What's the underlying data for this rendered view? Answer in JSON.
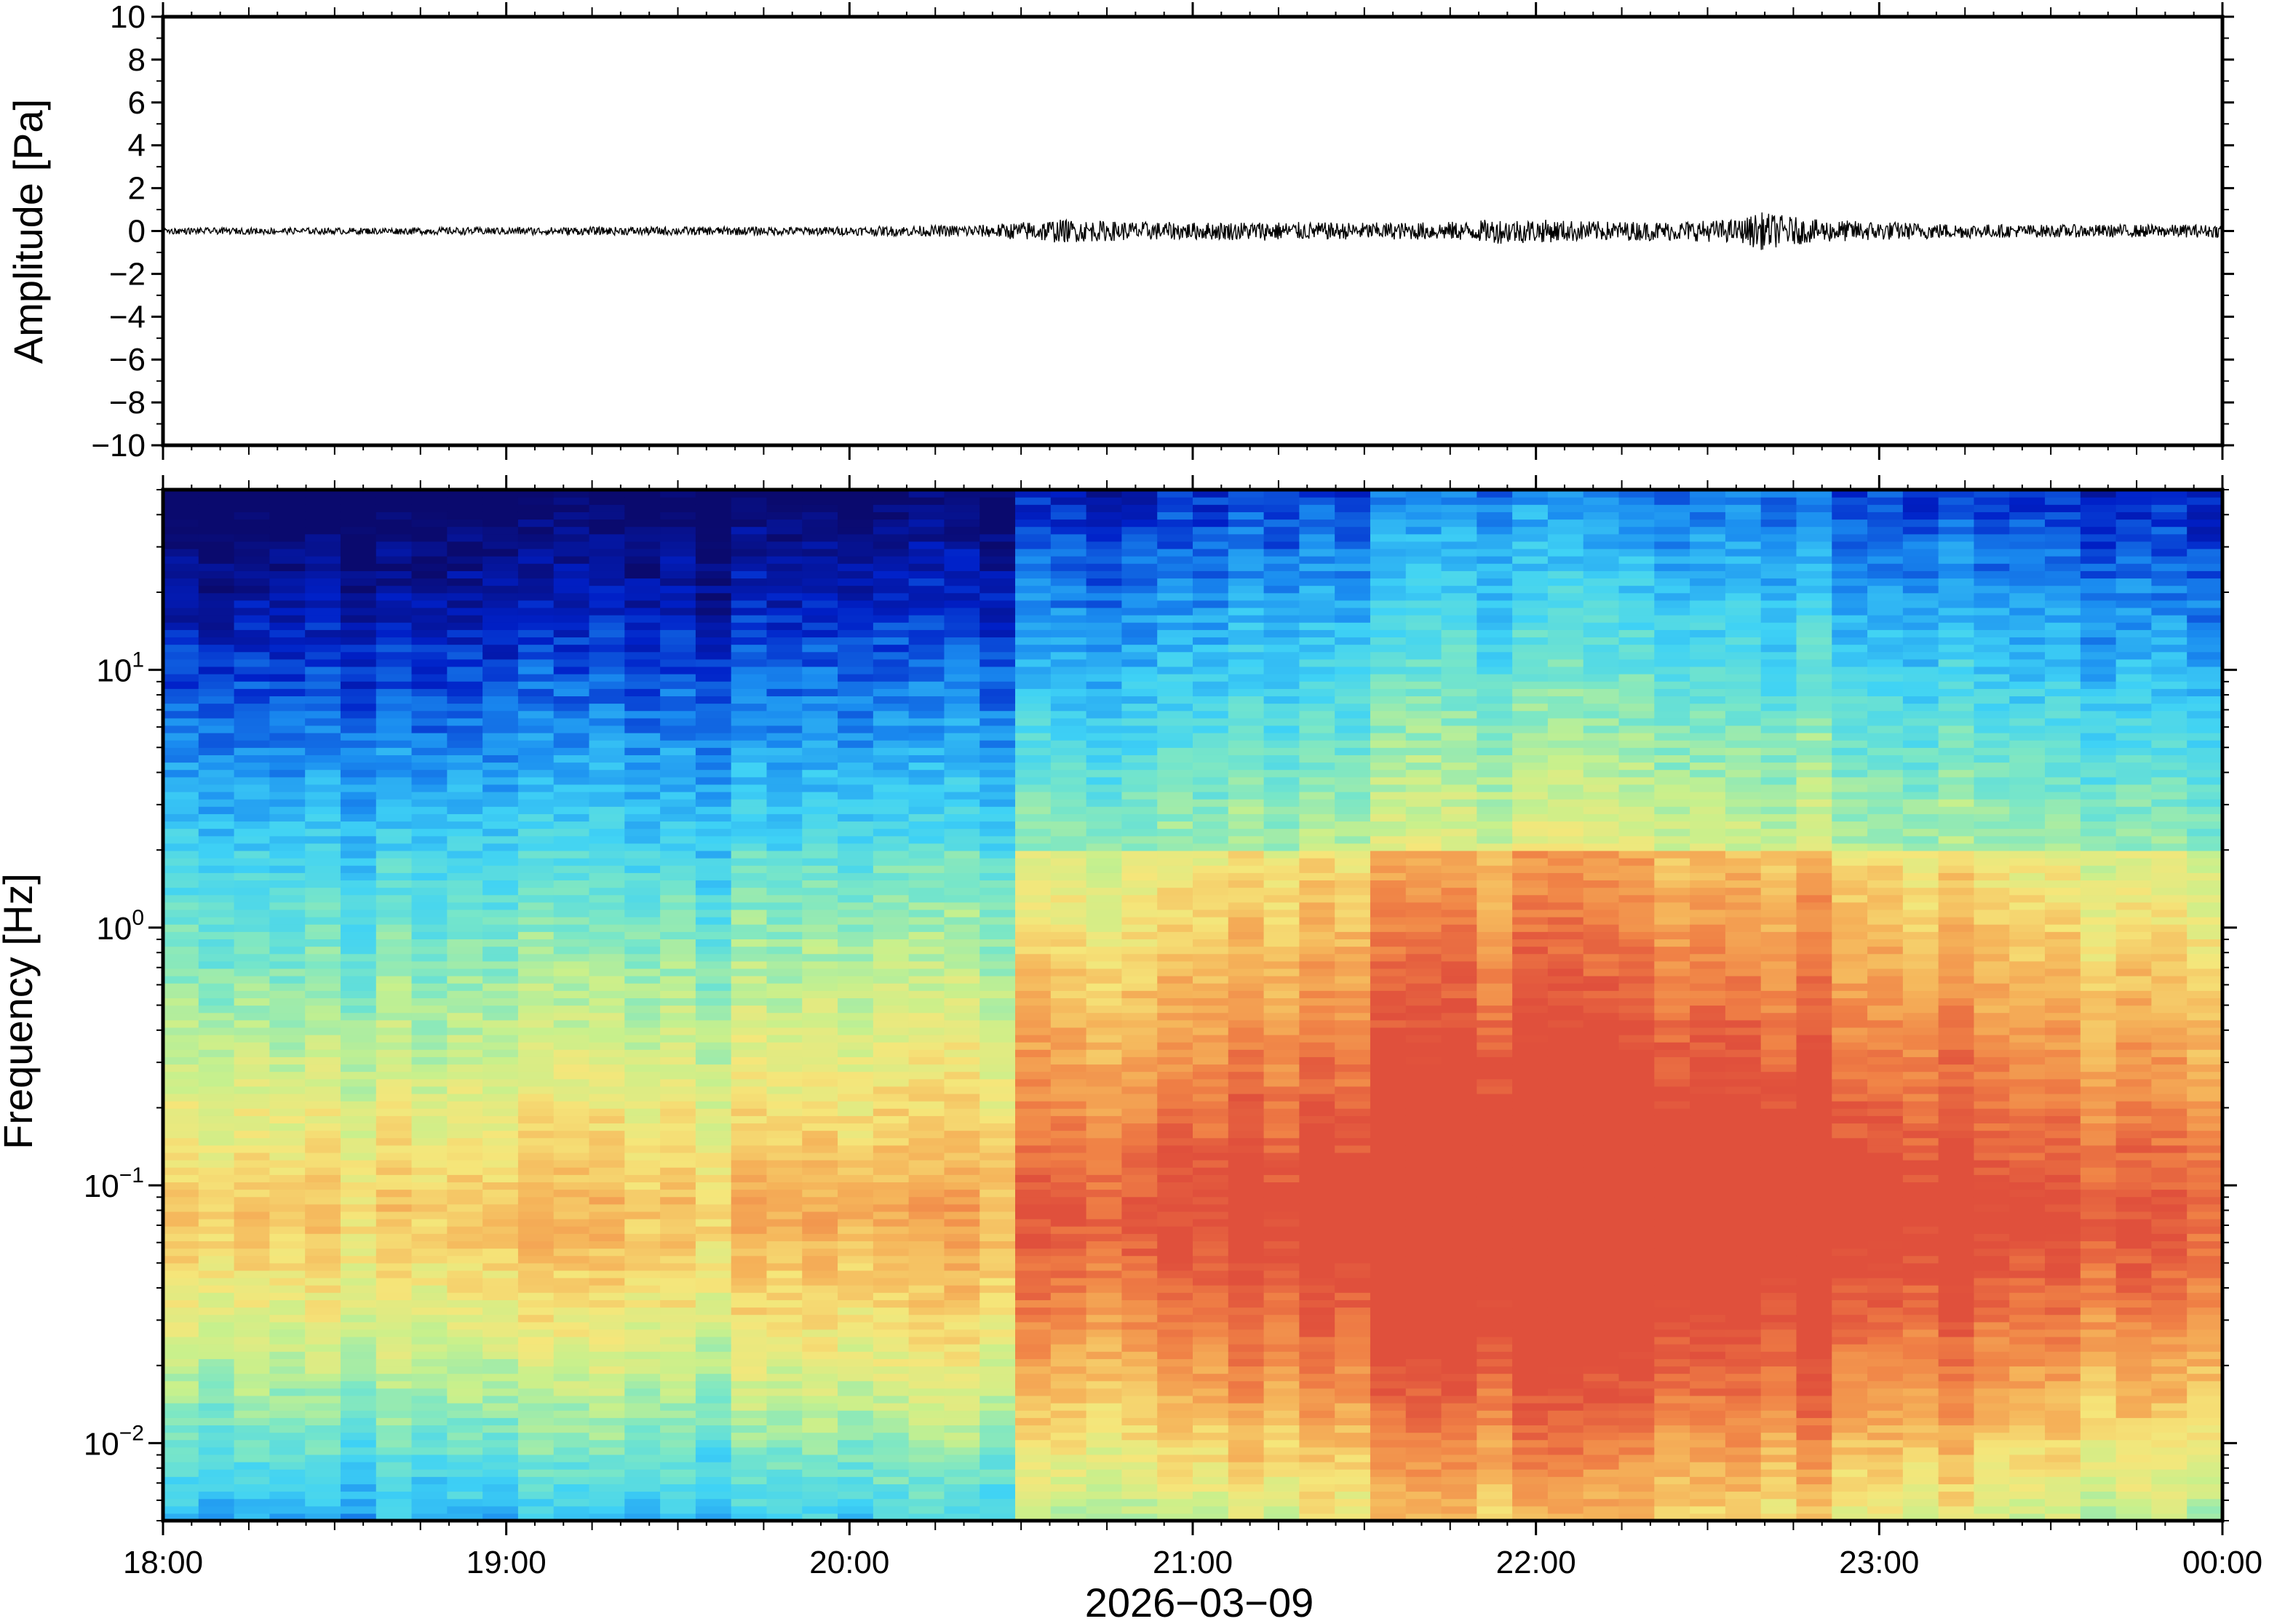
{
  "chart_data": [
    {
      "type": "line",
      "panel": "waveform",
      "ylabel": "Amplitude [Pa]",
      "ylim": [
        -10,
        10
      ],
      "yticks": [
        10,
        8,
        6,
        4,
        2,
        0,
        -2,
        -4,
        -6,
        -8,
        -10
      ],
      "ytick_labels": [
        "10",
        "8",
        "6",
        "4",
        "2",
        "0",
        "−2",
        "−4",
        "−6",
        "−8",
        "−10"
      ],
      "xlim_hours": [
        18,
        24
      ],
      "line_color": "#000000",
      "series": [
        {
          "x_hours": [
            18.0,
            18.5,
            19.0,
            19.5,
            20.0,
            20.2,
            20.4,
            20.6,
            20.8,
            21.0,
            21.2,
            21.4,
            21.6,
            21.8,
            21.9,
            22.0,
            22.2,
            22.4,
            22.6,
            22.65,
            22.8,
            23.0,
            23.2,
            23.4,
            23.6,
            23.8,
            24.0
          ],
          "envelope_pa": [
            0.15,
            0.15,
            0.18,
            0.2,
            0.2,
            0.25,
            0.3,
            0.55,
            0.45,
            0.4,
            0.45,
            0.4,
            0.4,
            0.45,
            0.6,
            0.55,
            0.45,
            0.45,
            0.55,
            0.9,
            0.55,
            0.45,
            0.35,
            0.3,
            0.3,
            0.3,
            0.3
          ]
        }
      ]
    },
    {
      "type": "heatmap",
      "panel": "spectrogram",
      "ylabel": "Frequency [Hz]",
      "y_scale": "log",
      "ylim": [
        0.005,
        50
      ],
      "yticks": [
        {
          "base": "10",
          "exp": "1"
        },
        {
          "base": "10",
          "exp": "0"
        },
        {
          "base": "10",
          "exp": "−1"
        },
        {
          "base": "10",
          "exp": "−2"
        }
      ],
      "ytick_values": [
        10,
        1,
        0.1,
        0.01
      ],
      "xlabel": "2026−03−09",
      "x_tick_labels": [
        "18:00",
        "19:00",
        "20:00",
        "21:00",
        "22:00",
        "23:00",
        "00:00"
      ],
      "xlim_hours": [
        18,
        24
      ],
      "colormap": [
        "#0a0a6e",
        "#0020c8",
        "#1a8cf0",
        "#3fd2f5",
        "#78e6c8",
        "#c8f08c",
        "#f5e67a",
        "#f5b45a",
        "#f08246",
        "#e0503c"
      ],
      "time_columns": 58,
      "peak_band_hz": [
        0.03,
        0.25
      ],
      "peak_time_hours": [
        21.5,
        23.0
      ]
    }
  ]
}
